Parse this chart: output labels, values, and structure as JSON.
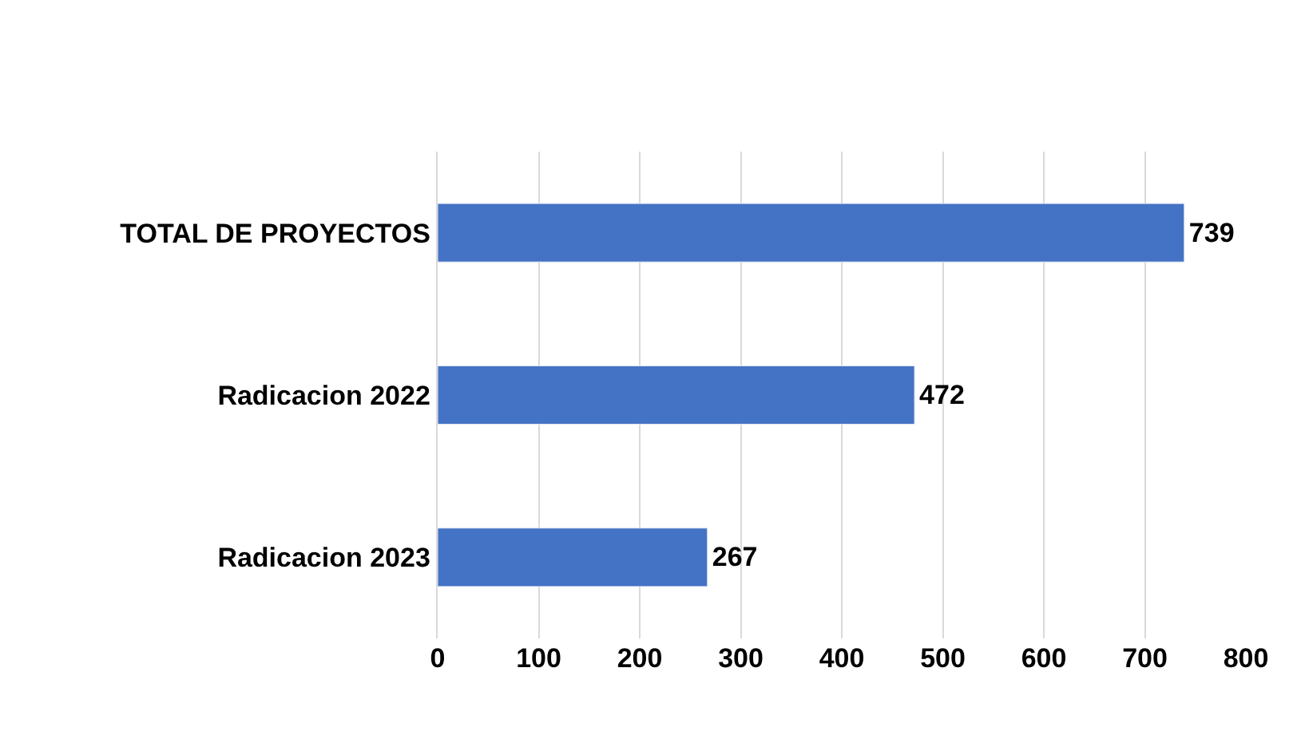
{
  "chart_data": {
    "type": "bar",
    "orientation": "horizontal",
    "categories": [
      "TOTAL DE PROYECTOS",
      "Radicacion 2022",
      "Radicacion 2023"
    ],
    "values": [
      739,
      472,
      267
    ],
    "color": "#4472c4",
    "xlim": [
      0,
      800
    ],
    "xticks": [
      0,
      100,
      200,
      300,
      400,
      500,
      600,
      700,
      800
    ],
    "grid": "x",
    "data_labels": true
  }
}
